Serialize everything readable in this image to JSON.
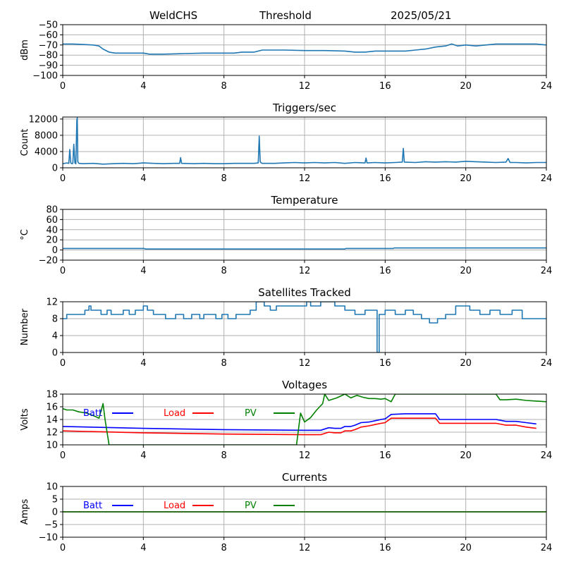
{
  "header": {
    "site": "WeldCHS",
    "kind": "Threshold",
    "date": "2025/05/21"
  },
  "colors": {
    "series": "#1f77b4",
    "batt": "#0000ff",
    "load": "#ff0000",
    "pv": "#008000",
    "grid": "#b0b0b0"
  },
  "chart_data": [
    {
      "type": "line",
      "title": "",
      "ylabel": "dBm",
      "xlim": [
        0,
        24
      ],
      "ylim": [
        -100,
        -50
      ],
      "xticks": [
        0,
        4,
        8,
        12,
        16,
        20,
        24
      ],
      "yticks": [
        -100,
        -90,
        -80,
        -70,
        -60,
        -50
      ],
      "grid": true,
      "series": [
        {
          "x": [
            0,
            0.5,
            1,
            1.5,
            1.8,
            2,
            2.3,
            2.6,
            3,
            3.5,
            4,
            4.3,
            4.6,
            5,
            6,
            7,
            8,
            8.5,
            8.9,
            9.5,
            9.9,
            10.5,
            11,
            12,
            13,
            14,
            14.5,
            15,
            15.5,
            16,
            16.5,
            17,
            17.5,
            18,
            18.5,
            19,
            19.3,
            19.6,
            20,
            20.5,
            21,
            21.5,
            22,
            22.5,
            23,
            23.5,
            24
          ],
          "y": [
            -69,
            -69,
            -69.5,
            -70,
            -71,
            -74,
            -77,
            -78,
            -78,
            -78,
            -78,
            -79,
            -79,
            -79,
            -78.5,
            -78,
            -78,
            -78,
            -77,
            -77,
            -75,
            -75,
            -75,
            -75.5,
            -75.5,
            -76,
            -77,
            -77,
            -76,
            -76,
            -76,
            -76,
            -75,
            -74,
            -72,
            -71,
            -69,
            -71,
            -70,
            -71,
            -70,
            -69,
            -69,
            -69,
            -69,
            -69,
            -70
          ]
        }
      ]
    },
    {
      "type": "line",
      "title": "Triggers/sec",
      "ylabel": "Count",
      "xlim": [
        0,
        24
      ],
      "ylim": [
        0,
        12500
      ],
      "xticks": [
        0,
        4,
        8,
        12,
        16,
        20,
        24
      ],
      "yticks": [
        0,
        4000,
        8000,
        12000
      ],
      "grid": true,
      "series": [
        {
          "x": [
            0,
            0.2,
            0.3,
            0.35,
            0.4,
            0.45,
            0.5,
            0.55,
            0.6,
            0.65,
            0.7,
            0.72,
            0.75,
            0.8,
            1,
            1.5,
            2,
            2.5,
            3,
            3.5,
            4,
            4.5,
            5,
            5.5,
            5.8,
            5.85,
            5.9,
            6.5,
            7,
            7.5,
            8,
            8.5,
            9,
            9.5,
            9.7,
            9.75,
            9.8,
            9.85,
            9.9,
            10.5,
            11,
            11.5,
            12,
            12.5,
            13,
            13.5,
            14,
            14.5,
            15,
            15.05,
            15.1,
            15.5,
            16,
            16.5,
            16.85,
            16.9,
            16.95,
            17.5,
            18,
            18.5,
            19,
            19.5,
            20,
            20.5,
            21,
            21.5,
            22,
            22.1,
            22.2,
            22.5,
            23,
            23.5,
            24
          ],
          "y": [
            1000,
            1200,
            1100,
            4500,
            1200,
            1000,
            1100,
            5800,
            1200,
            1000,
            11800,
            12300,
            1500,
            1100,
            1000,
            1100,
            900,
            1000,
            1100,
            1000,
            1200,
            1100,
            1000,
            1100,
            1100,
            2500,
            1100,
            1000,
            1100,
            1000,
            1000,
            1100,
            1100,
            1100,
            1200,
            7800,
            1500,
            1200,
            1100,
            1100,
            1200,
            1300,
            1200,
            1300,
            1200,
            1300,
            1100,
            1300,
            1200,
            2400,
            1200,
            1300,
            1200,
            1300,
            1400,
            4800,
            1400,
            1300,
            1500,
            1400,
            1500,
            1400,
            1600,
            1500,
            1400,
            1300,
            1400,
            2300,
            1300,
            1300,
            1200,
            1300,
            1300
          ]
        }
      ]
    },
    {
      "type": "line",
      "title": "Temperature",
      "ylabel": "°C",
      "xlim": [
        0,
        24
      ],
      "ylim": [
        -20,
        80
      ],
      "xticks": [
        0,
        4,
        8,
        12,
        16,
        20,
        24
      ],
      "yticks": [
        -20,
        0,
        20,
        40,
        60,
        80
      ],
      "grid": true,
      "series": [
        {
          "x": [
            0,
            4.05,
            4.1,
            14,
            14.05,
            16.4,
            16.45,
            24
          ],
          "y": [
            3,
            3,
            2,
            2,
            3,
            3,
            4,
            4
          ]
        }
      ]
    },
    {
      "type": "line",
      "title": "Satellites Tracked",
      "ylabel": "Number",
      "xlim": [
        0,
        24
      ],
      "ylim": [
        0,
        12
      ],
      "xticks": [
        0,
        4,
        8,
        12,
        16,
        20,
        24
      ],
      "yticks": [
        0,
        4,
        8,
        12
      ],
      "grid": true,
      "series": [
        {
          "x": [
            0,
            0.2,
            0.2,
            0.4,
            0.4,
            1.1,
            1.1,
            1.3,
            1.3,
            1.4,
            1.4,
            1.9,
            1.9,
            2.2,
            2.2,
            2.4,
            2.4,
            3,
            3,
            3.3,
            3.3,
            3.6,
            3.6,
            4,
            4,
            4.2,
            4.2,
            4.5,
            4.5,
            5.1,
            5.1,
            5.6,
            5.6,
            6,
            6,
            6.4,
            6.4,
            6.8,
            6.8,
            7,
            7,
            7.6,
            7.6,
            7.9,
            7.9,
            8.2,
            8.2,
            8.6,
            8.6,
            9.3,
            9.3,
            9.6,
            9.6,
            10,
            10,
            10.3,
            10.3,
            10.6,
            10.6,
            11,
            11,
            12.1,
            12.1,
            12.3,
            12.3,
            12.8,
            12.8,
            13.5,
            13.5,
            14,
            14,
            14.5,
            14.5,
            15,
            15,
            15.6,
            15.6,
            15.7,
            15.7,
            16,
            16,
            16.5,
            16.5,
            17,
            17,
            17.4,
            17.4,
            17.8,
            17.8,
            18.2,
            18.2,
            18.6,
            18.6,
            19,
            19,
            19.5,
            19.5,
            20.2,
            20.2,
            20.7,
            20.7,
            21.2,
            21.2,
            21.7,
            21.7,
            22.3,
            22.3,
            22.8,
            22.8,
            24
          ],
          "y": [
            8,
            8,
            9,
            9,
            9,
            9,
            10,
            10,
            11,
            11,
            10,
            10,
            9,
            9,
            10,
            10,
            9,
            9,
            10,
            10,
            9,
            9,
            10,
            10,
            11,
            11,
            10,
            10,
            9,
            9,
            8,
            8,
            9,
            9,
            8,
            8,
            9,
            9,
            8,
            8,
            9,
            9,
            8,
            8,
            9,
            9,
            8,
            8,
            9,
            9,
            10,
            10,
            12,
            12,
            11,
            11,
            10,
            10,
            11,
            11,
            11,
            11,
            12,
            12,
            11,
            11,
            12,
            12,
            11,
            11,
            10,
            10,
            9,
            9,
            10,
            10,
            0,
            0,
            9,
            9,
            10,
            10,
            9,
            9,
            10,
            10,
            9,
            9,
            8,
            8,
            7,
            7,
            8,
            8,
            9,
            9,
            11,
            11,
            10,
            10,
            9,
            9,
            10,
            10,
            9,
            9,
            10,
            10,
            8,
            8
          ]
        }
      ]
    },
    {
      "type": "line",
      "title": "Voltages",
      "ylabel": "Volts",
      "xlim": [
        0,
        24
      ],
      "ylim": [
        10,
        18
      ],
      "xticks": [
        0,
        4,
        8,
        12,
        16,
        20,
        24
      ],
      "yticks": [
        10,
        12,
        14,
        16,
        18
      ],
      "grid": true,
      "legend": [
        "Batt",
        "Load",
        "PV"
      ],
      "legend_placement": "top-left",
      "series": [
        {
          "name": "Batt",
          "x": [
            0,
            4,
            8,
            12,
            12.8,
            13.2,
            13.5,
            13.8,
            14,
            14.3,
            14.5,
            14.8,
            15.2,
            15.5,
            15.8,
            16,
            16.3,
            17,
            18,
            18.5,
            18.7,
            20,
            21,
            21.5,
            22,
            22.5,
            23,
            23.5
          ],
          "y": [
            12.9,
            12.6,
            12.4,
            12.3,
            12.3,
            12.7,
            12.6,
            12.6,
            12.9,
            12.9,
            13.1,
            13.5,
            13.6,
            13.8,
            14,
            14.1,
            14.8,
            14.9,
            14.9,
            14.9,
            14.0,
            14.0,
            14.0,
            14.0,
            13.7,
            13.7,
            13.5,
            13.3
          ]
        },
        {
          "name": "Load",
          "x": [
            0,
            4,
            8,
            12,
            12.8,
            13.2,
            13.5,
            13.8,
            14,
            14.3,
            14.5,
            14.8,
            15.2,
            15.5,
            15.8,
            16,
            16.3,
            17,
            18,
            18.5,
            18.7,
            20,
            21,
            21.5,
            22,
            22.5,
            23,
            23.5
          ],
          "y": [
            12.2,
            11.9,
            11.7,
            11.6,
            11.6,
            12.0,
            11.9,
            11.9,
            12.2,
            12.2,
            12.4,
            12.8,
            13.0,
            13.2,
            13.4,
            13.5,
            14.2,
            14.2,
            14.2,
            14.2,
            13.4,
            13.4,
            13.4,
            13.4,
            13.1,
            13.1,
            12.8,
            12.6
          ]
        },
        {
          "name": "PV",
          "x": [
            0,
            0.2,
            0.5,
            0.8,
            1.2,
            1.6,
            1.8,
            2.0,
            2.1,
            2.3,
            11.6,
            11.8,
            12.0,
            12.3,
            12.6,
            12.9,
            13.0,
            13.2,
            13.6,
            14.0,
            14.3,
            14.6,
            14.9,
            15.2,
            15.5,
            15.8,
            16.0,
            16.3,
            16.5,
            21.5,
            21.7,
            22,
            22.5,
            23,
            23.5,
            24
          ],
          "y": [
            15.7,
            15.5,
            15.5,
            15.2,
            15.0,
            14.5,
            14.2,
            16.5,
            14.0,
            10.0,
            10.0,
            15.0,
            13.6,
            14.3,
            15.5,
            16.5,
            18.0,
            17.0,
            17.4,
            18.0,
            17.4,
            17.8,
            17.5,
            17.3,
            17.3,
            17.2,
            17.3,
            16.8,
            18.0,
            18.0,
            17.1,
            17.1,
            17.2,
            17.0,
            16.9,
            16.8
          ]
        }
      ]
    },
    {
      "type": "line",
      "title": "Currents",
      "ylabel": "Amps",
      "xlim": [
        0,
        24
      ],
      "ylim": [
        -10,
        10
      ],
      "xticks": [
        0,
        4,
        8,
        12,
        16,
        20,
        24
      ],
      "yticks": [
        -10,
        -5,
        0,
        5,
        10
      ],
      "grid": true,
      "legend": [
        "Batt",
        "Load",
        "PV"
      ],
      "legend_placement": "top-left",
      "series": [
        {
          "name": "Batt",
          "x": [
            0,
            24
          ],
          "y": [
            0,
            0
          ]
        },
        {
          "name": "Load",
          "x": [
            0,
            24
          ],
          "y": [
            0,
            0
          ]
        },
        {
          "name": "PV",
          "x": [
            0,
            24
          ],
          "y": [
            0,
            0
          ]
        }
      ]
    }
  ]
}
